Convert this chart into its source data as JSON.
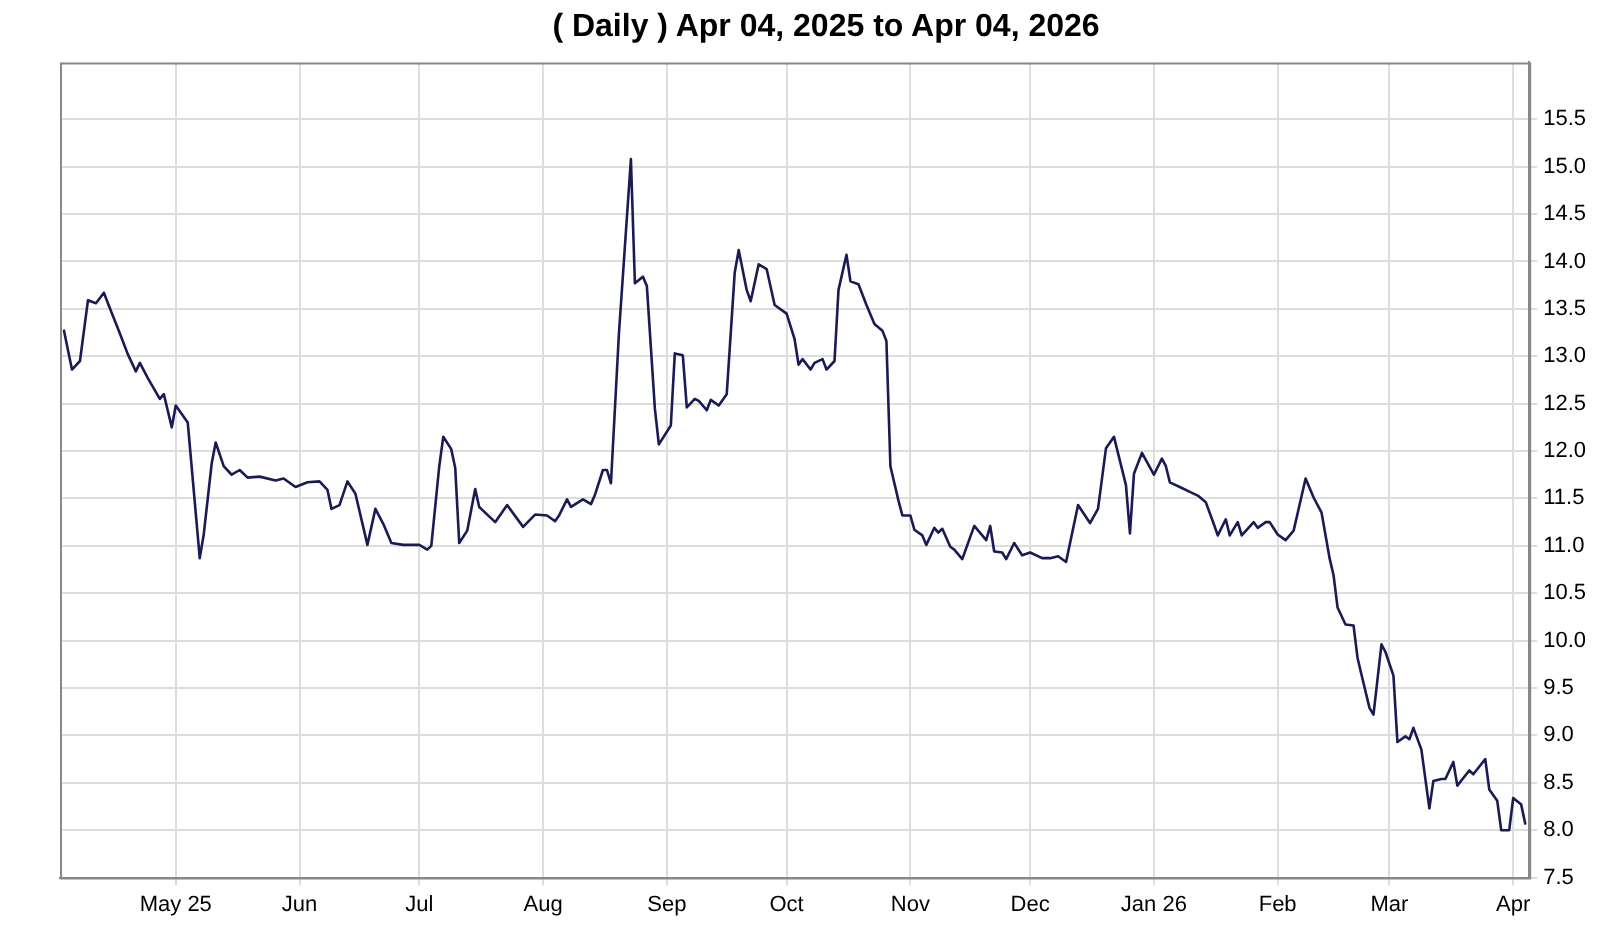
{
  "chart_data": {
    "type": "line",
    "title": "( Daily ) Apr 04, 2025 to Apr 04, 2026",
    "xlim": [
      "2025-04-02",
      "2026-04-05"
    ],
    "xticks": [
      {
        "value": "2025-05-01",
        "label": "May 25"
      },
      {
        "value": "2025-06-01",
        "label": "Jun"
      },
      {
        "value": "2025-07-01",
        "label": "Jul"
      },
      {
        "value": "2025-08-01",
        "label": "Aug"
      },
      {
        "value": "2025-09-01",
        "label": "Sep"
      },
      {
        "value": "2025-10-01",
        "label": "Oct"
      },
      {
        "value": "2025-11-01",
        "label": "Nov"
      },
      {
        "value": "2025-12-01",
        "label": "Dec"
      },
      {
        "value": "2026-01-01",
        "label": "Jan 26"
      },
      {
        "value": "2026-02-01",
        "label": "Feb"
      },
      {
        "value": "2026-03-01",
        "label": "Mar"
      },
      {
        "value": "2026-04-01",
        "label": "Apr"
      }
    ],
    "ylim": [
      7.5,
      16.1
    ],
    "yticks": [
      {
        "value": 7.5,
        "label": "7.5"
      },
      {
        "value": 8,
        "label": "8.0"
      },
      {
        "value": 8.5,
        "label": "8.5"
      },
      {
        "value": 9,
        "label": "9.0"
      },
      {
        "value": 9.5,
        "label": "9.5"
      },
      {
        "value": 10,
        "label": "10.0"
      },
      {
        "value": 10.5,
        "label": "10.5"
      },
      {
        "value": 11,
        "label": "11.0"
      },
      {
        "value": 11.5,
        "label": "11.5"
      },
      {
        "value": 12,
        "label": "12.0"
      },
      {
        "value": 12.5,
        "label": "12.5"
      },
      {
        "value": 13,
        "label": "13.0"
      },
      {
        "value": 13.5,
        "label": "13.5"
      },
      {
        "value": 14,
        "label": "14.0"
      },
      {
        "value": 14.5,
        "label": "14.5"
      },
      {
        "value": 15,
        "label": "15.0"
      },
      {
        "value": 15.5,
        "label": "15.5"
      }
    ],
    "grid": true,
    "legend": false,
    "marker": "none",
    "line_style": "solid",
    "series": [
      {
        "color": "#1a1a55",
        "x": [
          "2025-04-03",
          "2025-04-05",
          "2025-04-07",
          "2025-04-09",
          "2025-04-11",
          "2025-04-13",
          "2025-04-14",
          "2025-04-17",
          "2025-04-19",
          "2025-04-21",
          "2025-04-22",
          "2025-04-24",
          "2025-04-27",
          "2025-04-28",
          "2025-04-30",
          "2025-05-01",
          "2025-05-04",
          "2025-05-07",
          "2025-05-08",
          "2025-05-10",
          "2025-05-11",
          "2025-05-13",
          "2025-05-15",
          "2025-05-17",
          "2025-05-19",
          "2025-05-22",
          "2025-05-26",
          "2025-05-28",
          "2025-05-31",
          "2025-06-03",
          "2025-06-06",
          "2025-06-08",
          "2025-06-09",
          "2025-06-11",
          "2025-06-13",
          "2025-06-15",
          "2025-06-18",
          "2025-06-20",
          "2025-06-22",
          "2025-06-24",
          "2025-06-27",
          "2025-07-01",
          "2025-07-03",
          "2025-07-04",
          "2025-07-06",
          "2025-07-07",
          "2025-07-09",
          "2025-07-10",
          "2025-07-11",
          "2025-07-13",
          "2025-07-15",
          "2025-07-16",
          "2025-07-20",
          "2025-07-23",
          "2025-07-27",
          "2025-07-30",
          "2025-08-02",
          "2025-08-04",
          "2025-08-05",
          "2025-08-07",
          "2025-08-08",
          "2025-08-11",
          "2025-08-13",
          "2025-08-14",
          "2025-08-16",
          "2025-08-17",
          "2025-08-18",
          "2025-08-20",
          "2025-08-23",
          "2025-08-24",
          "2025-08-26",
          "2025-08-27",
          "2025-08-29",
          "2025-08-30",
          "2025-09-02",
          "2025-09-03",
          "2025-09-05",
          "2025-09-06",
          "2025-09-08",
          "2025-09-09",
          "2025-09-11",
          "2025-09-12",
          "2025-09-14",
          "2025-09-16",
          "2025-09-18",
          "2025-09-19",
          "2025-09-21",
          "2025-09-22",
          "2025-09-24",
          "2025-09-26",
          "2025-09-28",
          "2025-10-01",
          "2025-10-03",
          "2025-10-04",
          "2025-10-05",
          "2025-10-07",
          "2025-10-08",
          "2025-10-10",
          "2025-10-11",
          "2025-10-13",
          "2025-10-14",
          "2025-10-16",
          "2025-10-17",
          "2025-10-19",
          "2025-10-21",
          "2025-10-23",
          "2025-10-25",
          "2025-10-26",
          "2025-10-27",
          "2025-10-29",
          "2025-10-30",
          "2025-11-01",
          "2025-11-02",
          "2025-11-04",
          "2025-11-05",
          "2025-11-07",
          "2025-11-08",
          "2025-11-09",
          "2025-11-11",
          "2025-11-12",
          "2025-11-14",
          "2025-11-17",
          "2025-11-20",
          "2025-11-21",
          "2025-11-22",
          "2025-11-24",
          "2025-11-25",
          "2025-11-27",
          "2025-11-29",
          "2025-12-01",
          "2025-12-04",
          "2025-12-06",
          "2025-12-08",
          "2025-12-10",
          "2025-12-13",
          "2025-12-16",
          "2025-12-18",
          "2025-12-20",
          "2025-12-22",
          "2025-12-25",
          "2025-12-26",
          "2025-12-27",
          "2025-12-29",
          "2026-01-01",
          "2026-01-03",
          "2026-01-04",
          "2026-01-05",
          "2026-01-08",
          "2026-01-10",
          "2026-01-12",
          "2026-01-14",
          "2026-01-16",
          "2026-01-17",
          "2026-01-19",
          "2026-01-20",
          "2026-01-22",
          "2026-01-23",
          "2026-01-26",
          "2026-01-27",
          "2026-01-29",
          "2026-01-30",
          "2026-02-01",
          "2026-02-03",
          "2026-02-05",
          "2026-02-08",
          "2026-02-10",
          "2026-02-12",
          "2026-02-14",
          "2026-02-15",
          "2026-02-16",
          "2026-02-18",
          "2026-02-20",
          "2026-02-21",
          "2026-02-22",
          "2026-02-24",
          "2026-02-25",
          "2026-02-27",
          "2026-02-28",
          "2026-03-02",
          "2026-03-03",
          "2026-03-05",
          "2026-03-06",
          "2026-03-07",
          "2026-03-09",
          "2026-03-11",
          "2026-03-12",
          "2026-03-14",
          "2026-03-15",
          "2026-03-17",
          "2026-03-18",
          "2026-03-21",
          "2026-03-22",
          "2026-03-25",
          "2026-03-26",
          "2026-03-28",
          "2026-03-29",
          "2026-03-31",
          "2026-04-01",
          "2026-04-03",
          "2026-04-04"
        ],
        "values": [
          13.27,
          12.86,
          12.95,
          13.59,
          13.56,
          13.67,
          13.56,
          13.24,
          13.02,
          12.84,
          12.93,
          12.77,
          12.55,
          12.6,
          12.25,
          12.48,
          12.3,
          10.87,
          11.12,
          11.87,
          12.09,
          11.84,
          11.75,
          11.8,
          11.72,
          11.73,
          11.69,
          11.71,
          11.62,
          11.67,
          11.68,
          11.59,
          11.39,
          11.43,
          11.68,
          11.55,
          11.01,
          11.39,
          11.23,
          11.03,
          11.01,
          11.01,
          10.96,
          11.0,
          11.84,
          12.15,
          12.02,
          11.82,
          11.03,
          11.16,
          11.6,
          11.41,
          11.25,
          11.43,
          11.2,
          11.33,
          11.32,
          11.26,
          11.32,
          11.49,
          11.41,
          11.49,
          11.44,
          11.54,
          11.8,
          11.8,
          11.66,
          13.24,
          15.08,
          13.77,
          13.84,
          13.74,
          12.45,
          12.07,
          12.27,
          13.03,
          13.01,
          12.46,
          12.55,
          12.53,
          12.43,
          12.54,
          12.48,
          12.6,
          13.88,
          14.12,
          13.7,
          13.58,
          13.97,
          13.92,
          13.54,
          13.45,
          13.18,
          12.91,
          12.97,
          12.86,
          12.93,
          12.97,
          12.86,
          12.95,
          13.7,
          14.07,
          13.79,
          13.76,
          13.54,
          13.34,
          13.27,
          13.16,
          11.84,
          11.48,
          11.32,
          11.32,
          11.17,
          11.11,
          11.01,
          11.19,
          11.14,
          11.18,
          10.99,
          10.96,
          10.86,
          11.21,
          11.06,
          11.21,
          10.94,
          10.93,
          10.86,
          11.03,
          10.9,
          10.93,
          10.87,
          10.87,
          10.89,
          10.83,
          11.43,
          11.24,
          11.39,
          12.03,
          12.15,
          11.64,
          11.13,
          11.76,
          11.98,
          11.75,
          11.92,
          11.84,
          11.67,
          11.61,
          11.57,
          11.53,
          11.46,
          11.23,
          11.11,
          11.28,
          11.11,
          11.25,
          11.11,
          11.25,
          11.19,
          11.25,
          11.25,
          11.12,
          11.06,
          11.16,
          11.71,
          11.51,
          11.35,
          10.87,
          10.69,
          10.35,
          10.17,
          10.16,
          9.82,
          9.64,
          9.29,
          9.22,
          9.96,
          9.88,
          9.63,
          8.93,
          8.99,
          8.96,
          9.08,
          8.85,
          8.23,
          8.52,
          8.54,
          8.54,
          8.72,
          8.47,
          8.63,
          8.59,
          8.75,
          8.43,
          8.31,
          8.0,
          8.0,
          8.34,
          8.27,
          8.07
        ]
      }
    ]
  }
}
